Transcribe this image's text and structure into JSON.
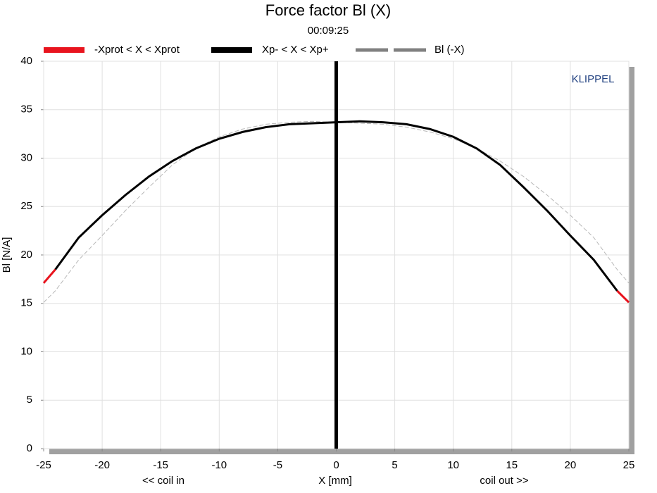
{
  "chart_data": {
    "type": "line",
    "title": "Force factor Bl (X)",
    "subtitle": "00:09:25",
    "x_label": "X [mm]",
    "y_label": "Bl [N/A]",
    "x_left_note": "<< coil in",
    "x_right_note": "coil out >>",
    "brand": "KLIPPEL",
    "x": [
      -25,
      -24,
      -22,
      -20,
      -18,
      -16,
      -14,
      -12,
      -10,
      -8,
      -6,
      -4,
      -2,
      0,
      2,
      4,
      6,
      8,
      10,
      12,
      14,
      16,
      18,
      20,
      22,
      24,
      25
    ],
    "series": [
      {
        "name": "-Xprot < X < Xprot",
        "color": "#e8141e",
        "dash": false,
        "values": [
          17.1,
          18.5,
          null,
          null,
          null,
          null,
          null,
          null,
          null,
          null,
          null,
          null,
          null,
          null,
          null,
          null,
          null,
          null,
          null,
          null,
          null,
          null,
          null,
          null,
          null,
          16.3,
          15.1
        ]
      },
      {
        "name": "Xp- < X < Xp+",
        "color": "#000000",
        "dash": false,
        "values": [
          null,
          18.5,
          21.8,
          24.1,
          26.2,
          28.1,
          29.7,
          31.0,
          32.0,
          32.7,
          33.2,
          33.5,
          33.6,
          33.7,
          33.8,
          33.7,
          33.5,
          33.0,
          32.2,
          31.0,
          29.3,
          27.0,
          24.6,
          22.0,
          19.5,
          16.3,
          null
        ]
      },
      {
        "name": "Bl (-X)",
        "color": "#808080",
        "dash": true,
        "values": [
          15.1,
          16.3,
          19.5,
          22.0,
          24.6,
          27.0,
          29.3,
          31.0,
          32.2,
          33.0,
          33.5,
          33.7,
          33.8,
          33.7,
          33.6,
          33.5,
          33.2,
          32.7,
          32.0,
          31.0,
          29.7,
          28.1,
          26.2,
          24.1,
          21.8,
          18.5,
          17.1
        ]
      }
    ],
    "cursor_x": 0,
    "xlim": [
      -25,
      25
    ],
    "ylim": [
      0,
      40
    ],
    "xticks": [
      -25,
      -20,
      -15,
      -10,
      -5,
      0,
      5,
      10,
      15,
      20,
      25
    ],
    "yticks": [
      0,
      5,
      10,
      15,
      20,
      25,
      30,
      35,
      40
    ],
    "grid": true
  }
}
